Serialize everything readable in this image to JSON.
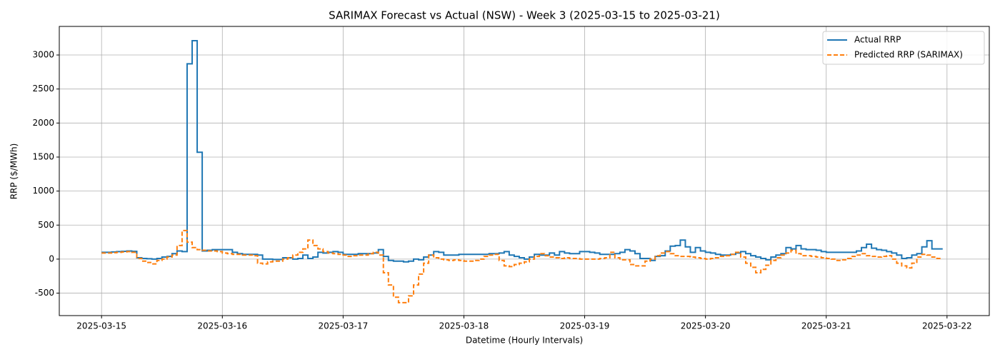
{
  "chart_data": {
    "type": "step",
    "title": "SARIMAX Forecast vs Actual (NSW) - Week 3 (2025-03-15 to 2025-03-21)",
    "xlabel": "Datetime (Hourly Intervals)",
    "ylabel": "RRP ($/MWh)",
    "categories": [
      "2025-03-15",
      null,
      null,
      null,
      null,
      null,
      null,
      null,
      null,
      null,
      null,
      null,
      null,
      null,
      null,
      null,
      null,
      null,
      null,
      null,
      null,
      null,
      null,
      null,
      "2025-03-16",
      null,
      null,
      null,
      null,
      null,
      null,
      null,
      null,
      null,
      null,
      null,
      null,
      null,
      null,
      null,
      null,
      null,
      null,
      null,
      null,
      null,
      null,
      null,
      "2025-03-17",
      null,
      null,
      null,
      null,
      null,
      null,
      null,
      null,
      null,
      null,
      null,
      null,
      null,
      null,
      null,
      null,
      null,
      null,
      null,
      null,
      null,
      null,
      null,
      "2025-03-18",
      null,
      null,
      null,
      null,
      null,
      null,
      null,
      null,
      null,
      null,
      null,
      null,
      null,
      null,
      null,
      null,
      null,
      null,
      null,
      null,
      null,
      null,
      null,
      "2025-03-19",
      null,
      null,
      null,
      null,
      null,
      null,
      null,
      null,
      null,
      null,
      null,
      null,
      null,
      null,
      null,
      null,
      null,
      null,
      null,
      null,
      null,
      null,
      null,
      "2025-03-20",
      null,
      null,
      null,
      null,
      null,
      null,
      null,
      null,
      null,
      null,
      null,
      null,
      null,
      null,
      null,
      null,
      null,
      null,
      null,
      null,
      null,
      null,
      null,
      "2025-03-21",
      null,
      null,
      null,
      null,
      null,
      null,
      null,
      null,
      null,
      null,
      null,
      null,
      null,
      null,
      null,
      null,
      null,
      null,
      null,
      null,
      null,
      null,
      null,
      "2025-03-22"
    ],
    "series": [
      {
        "name": "Actual RRP",
        "color": "#1f77b4",
        "dash": "solid",
        "values": [
          100,
          100,
          105,
          110,
          115,
          120,
          115,
          20,
          10,
          5,
          0,
          10,
          30,
          40,
          80,
          120,
          110,
          2870,
          3210,
          1570,
          120,
          130,
          140,
          140,
          140,
          140,
          100,
          80,
          70,
          70,
          70,
          60,
          0,
          0,
          -5,
          -5,
          20,
          20,
          0,
          10,
          60,
          10,
          30,
          100,
          90,
          100,
          110,
          100,
          70,
          70,
          70,
          80,
          80,
          80,
          90,
          140,
          40,
          -20,
          -30,
          -30,
          -40,
          -30,
          0,
          -10,
          30,
          60,
          110,
          100,
          60,
          60,
          60,
          70,
          70,
          70,
          70,
          70,
          70,
          80,
          80,
          90,
          110,
          60,
          40,
          20,
          0,
          30,
          70,
          60,
          60,
          90,
          60,
          110,
          90,
          80,
          80,
          110,
          110,
          100,
          90,
          70,
          70,
          70,
          80,
          100,
          140,
          120,
          80,
          10,
          10,
          -20,
          40,
          50,
          120,
          190,
          200,
          280,
          180,
          100,
          170,
          120,
          100,
          90,
          70,
          60,
          60,
          70,
          90,
          110,
          80,
          50,
          30,
          10,
          -10,
          30,
          60,
          80,
          170,
          150,
          200,
          150,
          140,
          140,
          130,
          110,
          100,
          100,
          100,
          100,
          100,
          100,
          120,
          170,
          220,
          160,
          140,
          130,
          110,
          90,
          60,
          10,
          20,
          60,
          80,
          180,
          270,
          150,
          150,
          140,
          null
        ]
      },
      {
        "name": "Predicted RRP (SARIMAX)",
        "color": "#ff7f0e",
        "dash": "dashed",
        "values": [
          90,
          90,
          95,
          100,
          105,
          110,
          100,
          10,
          -30,
          -50,
          -70,
          -20,
          0,
          30,
          60,
          200,
          420,
          250,
          170,
          140,
          130,
          120,
          120,
          110,
          90,
          80,
          70,
          70,
          60,
          60,
          50,
          -60,
          -70,
          -40,
          -30,
          -30,
          0,
          20,
          60,
          100,
          150,
          280,
          200,
          150,
          110,
          90,
          80,
          70,
          60,
          40,
          50,
          60,
          60,
          80,
          100,
          60,
          -200,
          -380,
          -560,
          -640,
          -640,
          -540,
          -380,
          -220,
          -60,
          60,
          20,
          0,
          -10,
          -20,
          -10,
          -20,
          -30,
          -30,
          -20,
          0,
          40,
          60,
          70,
          -20,
          -100,
          -110,
          -80,
          -60,
          -40,
          0,
          40,
          80,
          50,
          30,
          20,
          10,
          20,
          10,
          10,
          0,
          0,
          0,
          0,
          10,
          20,
          100,
          20,
          -10,
          -10,
          -80,
          -100,
          -100,
          -30,
          0,
          50,
          90,
          110,
          80,
          50,
          40,
          40,
          30,
          20,
          10,
          0,
          10,
          20,
          40,
          50,
          70,
          100,
          30,
          -60,
          -120,
          -200,
          -150,
          -90,
          -20,
          20,
          60,
          90,
          130,
          80,
          50,
          50,
          40,
          30,
          20,
          10,
          0,
          -20,
          -10,
          10,
          40,
          60,
          80,
          50,
          40,
          30,
          40,
          50,
          0,
          -60,
          -100,
          -130,
          -60,
          30,
          70,
          60,
          30,
          10,
          0,
          null
        ]
      }
    ],
    "ylim": [
      -830,
      3420
    ],
    "yticks": [
      -500,
      0,
      500,
      1000,
      1500,
      2000,
      2500,
      3000
    ],
    "grid": true,
    "legend": "upper right"
  }
}
